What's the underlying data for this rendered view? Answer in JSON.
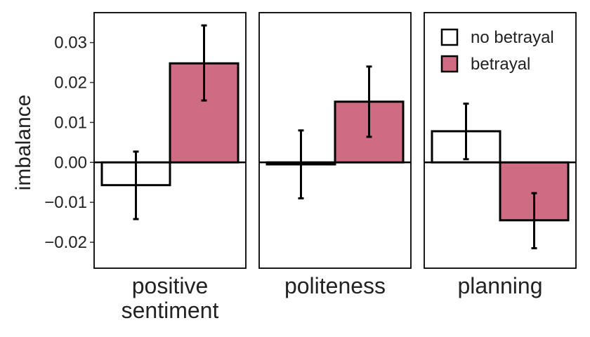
{
  "chart_data": {
    "type": "bar",
    "ylabel": "imbalance",
    "ylim": [
      -0.0265,
      0.0375
    ],
    "yticks": [
      {
        "value": -0.02,
        "label": "−0.02"
      },
      {
        "value": -0.01,
        "label": "−0.01"
      },
      {
        "value": 0.0,
        "label": "0.00"
      },
      {
        "value": 0.01,
        "label": "0.01"
      },
      {
        "value": 0.02,
        "label": "0.02"
      },
      {
        "value": 0.03,
        "label": "0.03"
      }
    ],
    "legend": {
      "position": "top-right of third panel",
      "entries": [
        {
          "name": "no betrayal",
          "color": "#ffffff"
        },
        {
          "name": "betrayal",
          "color": "#cf6b83"
        }
      ]
    },
    "panels": [
      {
        "label_lines": [
          "positive",
          "sentiment"
        ],
        "bars": [
          {
            "series": "no betrayal",
            "value": -0.0057,
            "err_low": -0.0142,
            "err_high": 0.0027
          },
          {
            "series": "betrayal",
            "value": 0.0248,
            "err_low": 0.0155,
            "err_high": 0.0343
          }
        ]
      },
      {
        "label_lines": [
          "politeness"
        ],
        "bars": [
          {
            "series": "no betrayal",
            "value": -0.0005,
            "err_low": -0.009,
            "err_high": 0.008
          },
          {
            "series": "betrayal",
            "value": 0.0152,
            "err_low": 0.0064,
            "err_high": 0.024
          }
        ]
      },
      {
        "label_lines": [
          "planning"
        ],
        "bars": [
          {
            "series": "no betrayal",
            "value": 0.0078,
            "err_low": 0.0008,
            "err_high": 0.0147
          },
          {
            "series": "betrayal",
            "value": -0.0145,
            "err_low": -0.0215,
            "err_high": -0.0077
          }
        ]
      }
    ]
  }
}
